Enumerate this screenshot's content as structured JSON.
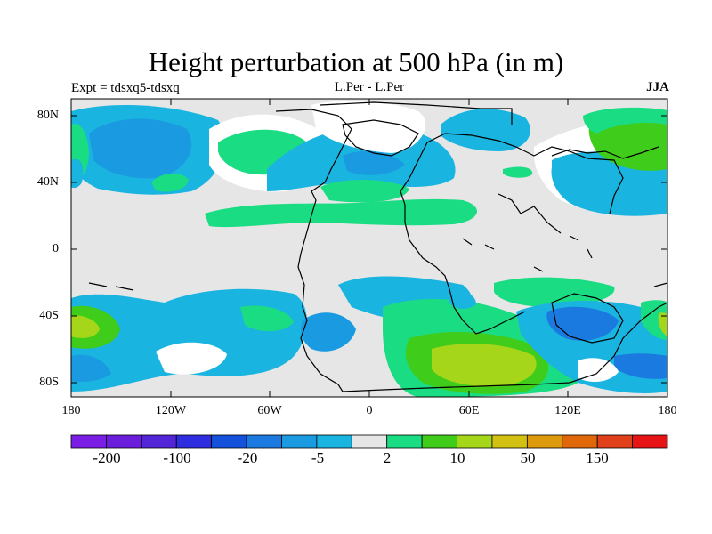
{
  "title": "Height perturbation at 500 hPa (in m)",
  "left_label": "Expt = tdsxq5-tdsxq",
  "center_label": "L.Per - L.Per",
  "right_label": "JJA",
  "y_ticks": [
    "80N",
    "40N",
    "0",
    "40S",
    "80S"
  ],
  "x_ticks": [
    "180",
    "120W",
    "60W",
    "0",
    "60E",
    "120E",
    "180"
  ],
  "colorbar": {
    "colors": [
      "#7a1ee6",
      "#6a1edc",
      "#5226d6",
      "#2e2ee0",
      "#1452dc",
      "#1a7ae0",
      "#1a9ae0",
      "#1ab4e0",
      "#e6e6e6",
      "#1adc82",
      "#40cc1a",
      "#a6d61a",
      "#d2c012",
      "#dc9a0c",
      "#e0680a",
      "#e0401a",
      "#e61414"
    ],
    "labels": [
      "-200",
      "-100",
      "-20",
      "-5",
      "2",
      "10",
      "50",
      "150"
    ]
  },
  "palette": {
    "background": "#e6e6e6",
    "light_blue": "#1ab4e0",
    "mid_blue": "#1a9ae0",
    "dark_blue": "#1a7ae0",
    "light_green": "#1adc82",
    "green": "#40cc1a",
    "yellow_green": "#a6d61a",
    "white": "#ffffff"
  }
}
